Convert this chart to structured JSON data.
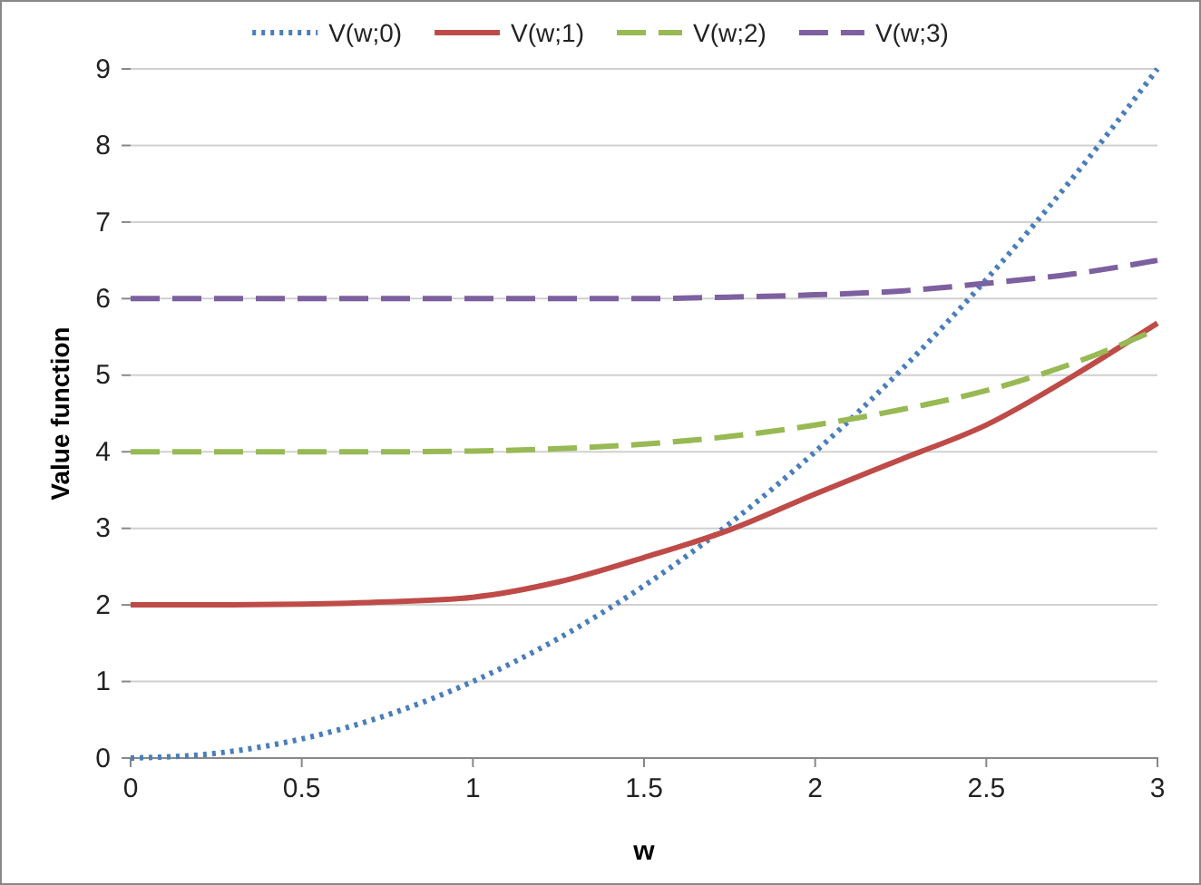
{
  "chart_data": {
    "type": "line",
    "xlabel": "w",
    "ylabel": "Value function",
    "x": [
      0,
      0.25,
      0.5,
      0.75,
      1,
      1.25,
      1.5,
      1.75,
      2,
      2.25,
      2.5,
      2.75,
      3
    ],
    "xlim": [
      0,
      3
    ],
    "xticks": [
      0,
      0.5,
      1,
      1.5,
      2,
      2.5,
      3
    ],
    "ylim": [
      0,
      9
    ],
    "yticks": [
      0,
      1,
      2,
      3,
      4,
      5,
      6,
      7,
      8,
      9
    ],
    "grid": "y",
    "legend": "top",
    "marker": "none",
    "series": [
      {
        "name": "V(w;0)",
        "color": "#4a7ebb",
        "line_style": "dotted",
        "values": [
          0,
          0.0625,
          0.25,
          0.5625,
          1,
          1.5625,
          2.25,
          3.0625,
          4,
          5.0625,
          6.25,
          7.5625,
          9
        ]
      },
      {
        "name": "V(w;1)",
        "color": "#be4b48",
        "line_style": "solid",
        "values": [
          2,
          2,
          2.01,
          2.04,
          2.1,
          2.3,
          2.62,
          2.98,
          3.45,
          3.9,
          4.35,
          4.98,
          5.68
        ]
      },
      {
        "name": "V(w;2)",
        "color": "#98b954",
        "line_style": "dashed",
        "values": [
          4,
          4,
          4,
          4,
          4.01,
          4.04,
          4.1,
          4.2,
          4.35,
          4.55,
          4.8,
          5.15,
          5.6
        ]
      },
      {
        "name": "V(w;3)",
        "color": "#7d60a0",
        "line_style": "dashed",
        "values": [
          6,
          6,
          6,
          6,
          6,
          6,
          6,
          6.02,
          6.05,
          6.1,
          6.2,
          6.32,
          6.5
        ]
      }
    ]
  }
}
